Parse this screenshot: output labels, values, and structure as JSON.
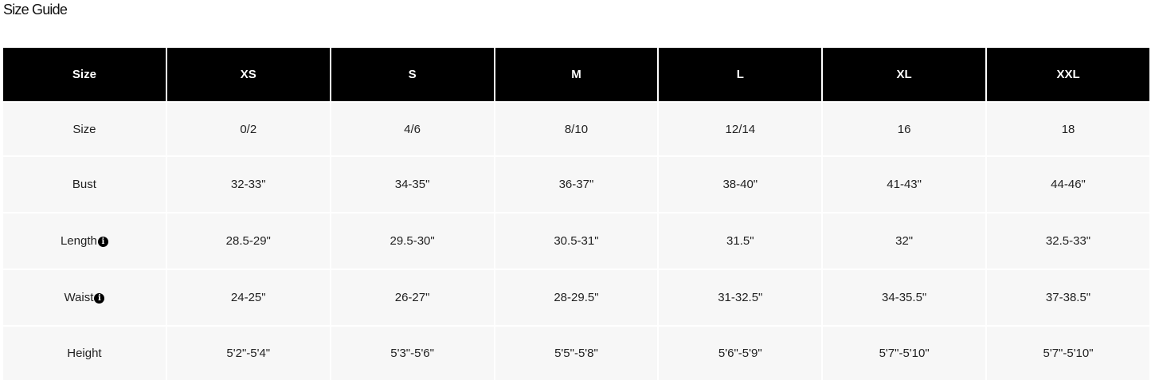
{
  "title": "Size Guide",
  "headers": [
    "Size",
    "XS",
    "S",
    "M",
    "L",
    "XL",
    "XXL"
  ],
  "rows": [
    {
      "label": "Size",
      "info": false,
      "values": [
        "0/2",
        "4/6",
        "8/10",
        "12/14",
        "16",
        "18"
      ]
    },
    {
      "label": "Bust",
      "info": false,
      "values": [
        "32-33\"",
        "34-35\"",
        "36-37\"",
        "38-40\"",
        "41-43\"",
        "44-46\""
      ]
    },
    {
      "label": "Length",
      "info": true,
      "values": [
        "28.5-29\"",
        "29.5-30\"",
        "30.5-31\"",
        "31.5\"",
        "32\"",
        "32.5-33\""
      ]
    },
    {
      "label": "Waist",
      "info": true,
      "values": [
        "24-25\"",
        "26-27\"",
        "28-29.5\"",
        "31-32.5\"",
        "34-35.5\"",
        "37-38.5\""
      ]
    },
    {
      "label": "Height",
      "info": false,
      "values": [
        "5'2\"-5'4\"",
        "5'3\"-5'6\"",
        "5'5\"-5'8\"",
        "5'6\"-5'9\"",
        "5'7\"-5'10\"",
        "5'7\"-5'10\""
      ]
    }
  ],
  "info_icon_glyph": "i",
  "colors": {
    "header_bg": "#000000",
    "header_text": "#ffffff",
    "cell_bg": "#f7f7f7"
  }
}
